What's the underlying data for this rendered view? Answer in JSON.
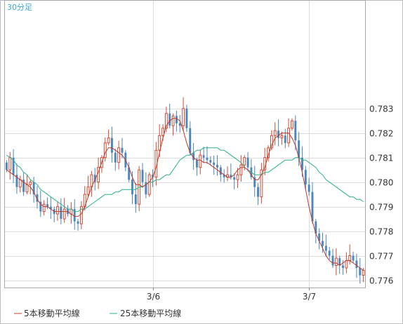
{
  "timeframe_label": "30分足",
  "chart_data": {
    "type": "candlestick",
    "ylim": [
      0.7757,
      0.7874
    ],
    "y_ticks": [
      0.776,
      0.777,
      0.778,
      0.779,
      0.78,
      0.781,
      0.782,
      0.783
    ],
    "y_tick_labels": [
      "0.776",
      "0.777",
      "0.778",
      "0.779",
      "0.780",
      "0.781",
      "0.782",
      "0.783"
    ],
    "x_tick_labels": [
      {
        "index": 43,
        "label": "3/6"
      },
      {
        "index": 89,
        "label": "3/7"
      }
    ],
    "colors": {
      "up": "#d24b35",
      "down": "#4a87bd",
      "ma5": "#c0392b",
      "ma25": "#2bb08a"
    },
    "legend": [
      {
        "name": "5本移動平均線",
        "color": "#c0392b"
      },
      {
        "name": "25本移動平均線",
        "color": "#2bb08a"
      }
    ],
    "closes": [
      0.7805,
      0.781,
      0.7803,
      0.7798,
      0.7801,
      0.7796,
      0.7799,
      0.78,
      0.7795,
      0.7792,
      0.7788,
      0.7791,
      0.779,
      0.7789,
      0.7787,
      0.779,
      0.7785,
      0.7789,
      0.7787,
      0.7789,
      0.7784,
      0.7783,
      0.779,
      0.7795,
      0.7798,
      0.7803,
      0.78,
      0.7806,
      0.781,
      0.7816,
      0.7818,
      0.7812,
      0.7808,
      0.7814,
      0.7812,
      0.7806,
      0.7801,
      0.7795,
      0.7791,
      0.7805,
      0.78,
      0.7795,
      0.7803,
      0.7802,
      0.7813,
      0.7819,
      0.7822,
      0.7828,
      0.7823,
      0.7827,
      0.7824,
      0.7823,
      0.783,
      0.7822,
      0.7812,
      0.7809,
      0.7806,
      0.7811,
      0.781,
      0.7809,
      0.7808,
      0.7807,
      0.7806,
      0.7803,
      0.7802,
      0.7803,
      0.7802,
      0.7801,
      0.7803,
      0.7807,
      0.781,
      0.7806,
      0.7802,
      0.7798,
      0.7794,
      0.7805,
      0.781,
      0.7814,
      0.7819,
      0.7821,
      0.7818,
      0.7819,
      0.7816,
      0.7822,
      0.7825,
      0.7817,
      0.781,
      0.7805,
      0.7799,
      0.7796,
      0.7784,
      0.7779,
      0.7776,
      0.7774,
      0.7772,
      0.777,
      0.7766,
      0.7769,
      0.7766,
      0.7765,
      0.7768,
      0.777,
      0.7768,
      0.7765,
      0.7762,
      0.7764
    ],
    "ma5": [
      0.7805,
      0.7804,
      0.7803,
      0.7802,
      0.7801,
      0.78,
      0.7799,
      0.7798,
      0.7796,
      0.7793,
      0.7791,
      0.779,
      0.779,
      0.7789,
      0.7788,
      0.7788,
      0.7788,
      0.7788,
      0.7788,
      0.7787,
      0.7786,
      0.7786,
      0.7787,
      0.779,
      0.7794,
      0.7798,
      0.7801,
      0.7804,
      0.7808,
      0.7812,
      0.7814,
      0.7814,
      0.7813,
      0.7812,
      0.7811,
      0.7809,
      0.7806,
      0.7802,
      0.7799,
      0.7799,
      0.7798,
      0.7799,
      0.78,
      0.7802,
      0.7806,
      0.7812,
      0.7818,
      0.7823,
      0.7825,
      0.7826,
      0.7826,
      0.7825,
      0.7821,
      0.7816,
      0.7812,
      0.781,
      0.7809,
      0.7809,
      0.7808,
      0.7808,
      0.7807,
      0.7806,
      0.7805,
      0.7804,
      0.7803,
      0.7802,
      0.7802,
      0.7803,
      0.7805,
      0.7806,
      0.7806,
      0.7805,
      0.7803,
      0.7801,
      0.7801,
      0.7803,
      0.7806,
      0.7811,
      0.7815,
      0.7818,
      0.7819,
      0.782,
      0.782,
      0.782,
      0.7818,
      0.7815,
      0.781,
      0.7804,
      0.7797,
      0.779,
      0.7784,
      0.7779,
      0.7776,
      0.7773,
      0.777,
      0.7768,
      0.7767,
      0.7767,
      0.7766,
      0.7767,
      0.7768,
      0.7768,
      0.7767,
      0.7766,
      0.7765,
      0.7764
    ],
    "ma25": [
      0.7811,
      0.781,
      0.7809,
      0.7807,
      0.7806,
      0.7804,
      0.7803,
      0.7801,
      0.78,
      0.7799,
      0.7797,
      0.7796,
      0.7795,
      0.7794,
      0.7793,
      0.7792,
      0.7791,
      0.779,
      0.7789,
      0.7789,
      0.7788,
      0.7788,
      0.7789,
      0.7789,
      0.779,
      0.7791,
      0.7792,
      0.7793,
      0.7794,
      0.7795,
      0.7795,
      0.7795,
      0.7796,
      0.7796,
      0.7797,
      0.7797,
      0.7797,
      0.7797,
      0.7797,
      0.7798,
      0.7798,
      0.7799,
      0.78,
      0.78,
      0.7801,
      0.7801,
      0.7802,
      0.7803,
      0.7803,
      0.7805,
      0.7807,
      0.7809,
      0.781,
      0.7811,
      0.7811,
      0.7812,
      0.7813,
      0.7813,
      0.7814,
      0.7814,
      0.7814,
      0.7814,
      0.7814,
      0.7813,
      0.7813,
      0.7812,
      0.7811,
      0.781,
      0.7809,
      0.7808,
      0.7806,
      0.7805,
      0.7804,
      0.7803,
      0.7803,
      0.7803,
      0.7804,
      0.7804,
      0.7805,
      0.7806,
      0.7807,
      0.7808,
      0.7809,
      0.7809,
      0.7809,
      0.781,
      0.781,
      0.7809,
      0.7809,
      0.7808,
      0.7807,
      0.7806,
      0.7804,
      0.7803,
      0.7801,
      0.78,
      0.7799,
      0.7798,
      0.7797,
      0.7796,
      0.7795,
      0.7794,
      0.7794,
      0.7793,
      0.7793,
      0.7792
    ]
  }
}
